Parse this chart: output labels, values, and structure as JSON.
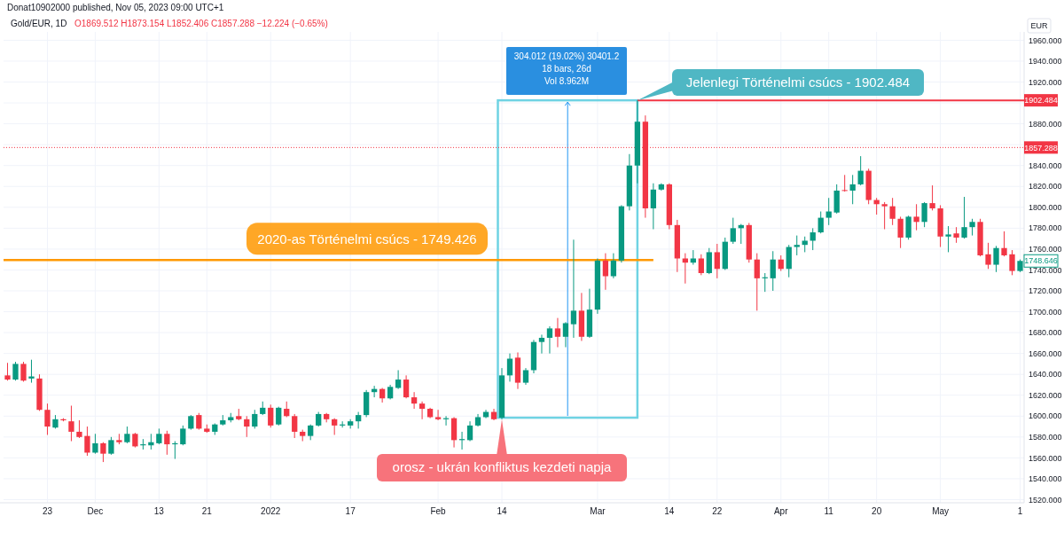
{
  "chart_data": {
    "type": "candlestick",
    "title": "Gold/EUR, 1D",
    "subtitle": "O1869.512 H1873.154 L1852.406 C1857.288 −12.224 (−0.65%)",
    "ylabel": "EUR",
    "categories": [
      null,
      null,
      null,
      null,
      null,
      "23",
      null,
      null,
      null,
      null,
      null,
      "Dec",
      null,
      null,
      null,
      null,
      null,
      null,
      null,
      "13",
      null,
      null,
      null,
      null,
      null,
      "21",
      null,
      null,
      null,
      null,
      null,
      null,
      null,
      "2022",
      null,
      null,
      null,
      null,
      null,
      null,
      null,
      null,
      null,
      "17",
      null,
      null,
      null,
      null,
      null,
      null,
      null,
      null,
      null,
      null,
      "Feb",
      null,
      null,
      null,
      null,
      null,
      null,
      null,
      "14",
      null,
      null,
      null,
      null,
      null,
      null,
      null,
      null,
      null,
      null,
      null,
      "Mar",
      null,
      null,
      null,
      null,
      null,
      null,
      null,
      null,
      "14",
      null,
      null,
      null,
      null,
      null,
      "22",
      null,
      null,
      null,
      null,
      null,
      null,
      null,
      "Apr",
      null,
      null,
      null,
      null,
      null,
      "11",
      null,
      null,
      null,
      null,
      null,
      "20",
      null,
      null,
      null,
      null,
      null,
      null,
      null,
      "May",
      null,
      null,
      null,
      null,
      null,
      null,
      null,
      null,
      null,
      "1"
    ],
    "ohlc": [
      [
        1639,
        1651,
        1634,
        1635
      ],
      [
        1635,
        1652,
        1634,
        1650
      ],
      [
        1650,
        1652,
        1633,
        1634
      ],
      [
        1636,
        1654,
        1632,
        1638
      ],
      [
        1636,
        1640,
        1605,
        1606
      ],
      [
        1606,
        1612,
        1582,
        1590
      ],
      [
        1589,
        1601,
        1588,
        1597
      ],
      [
        1597,
        1598,
        1595,
        1596
      ],
      [
        1595,
        1610,
        1576,
        1585
      ],
      [
        1585,
        1596,
        1579,
        1580
      ],
      [
        1581,
        1590,
        1562,
        1565
      ],
      [
        1565,
        1583,
        1564,
        1574
      ],
      [
        1574,
        1575,
        1556,
        1564
      ],
      [
        1564,
        1580,
        1563,
        1577
      ],
      [
        1577,
        1583,
        1573,
        1575
      ],
      [
        1575,
        1590,
        1574,
        1583
      ],
      [
        1583,
        1584,
        1570,
        1571
      ],
      [
        1572,
        1578,
        1568,
        1573
      ],
      [
        1572,
        1583,
        1568,
        1575
      ],
      [
        1574,
        1588,
        1573,
        1583
      ],
      [
        1583,
        1586,
        1563,
        1573
      ],
      [
        1573,
        1576,
        1559,
        1574
      ],
      [
        1573,
        1591,
        1572,
        1588
      ],
      [
        1588,
        1601,
        1587,
        1600
      ],
      [
        1601,
        1603,
        1587,
        1588
      ],
      [
        1588,
        1592,
        1584,
        1585
      ],
      [
        1585,
        1593,
        1582,
        1592
      ],
      [
        1592,
        1601,
        1591,
        1596
      ],
      [
        1596,
        1603,
        1594,
        1599
      ],
      [
        1600,
        1607,
        1596,
        1597
      ],
      [
        1597,
        1600,
        1580,
        1590
      ],
      [
        1590,
        1606,
        1588,
        1602
      ],
      [
        1602,
        1614,
        1601,
        1608
      ],
      [
        1608,
        1611,
        1589,
        1591
      ],
      [
        1592,
        1609,
        1591,
        1608
      ],
      [
        1607,
        1614,
        1599,
        1600
      ],
      [
        1600,
        1602,
        1579,
        1585
      ],
      [
        1585,
        1587,
        1576,
        1581
      ],
      [
        1581,
        1592,
        1577,
        1591
      ],
      [
        1591,
        1604,
        1590,
        1602
      ],
      [
        1602,
        1603,
        1594,
        1597
      ],
      [
        1597,
        1598,
        1582,
        1591
      ],
      [
        1591,
        1595,
        1589,
        1592
      ],
      [
        1591,
        1597,
        1588,
        1595
      ],
      [
        1595,
        1604,
        1588,
        1601
      ],
      [
        1601,
        1625,
        1599,
        1623
      ],
      [
        1623,
        1629,
        1618,
        1626
      ],
      [
        1626,
        1627,
        1613,
        1617
      ],
      [
        1617,
        1630,
        1616,
        1628
      ],
      [
        1627,
        1644,
        1626,
        1635
      ],
      [
        1635,
        1639,
        1617,
        1618
      ],
      [
        1618,
        1623,
        1607,
        1612
      ],
      [
        1612,
        1614,
        1597,
        1607
      ],
      [
        1607,
        1608,
        1598,
        1599
      ],
      [
        1599,
        1606,
        1596,
        1597
      ],
      [
        1597,
        1600,
        1591,
        1598
      ],
      [
        1598,
        1599,
        1570,
        1577
      ],
      [
        1577,
        1585,
        1568,
        1578
      ],
      [
        1577,
        1595,
        1576,
        1591
      ],
      [
        1591,
        1602,
        1590,
        1599
      ],
      [
        1599,
        1606,
        1598,
        1604
      ],
      [
        1604,
        1607,
        1596,
        1597
      ],
      [
        1598.472,
        1646,
        1597,
        1639
      ],
      [
        1639,
        1660,
        1633,
        1655
      ],
      [
        1656,
        1661,
        1626,
        1632
      ],
      [
        1632,
        1646,
        1630,
        1644
      ],
      [
        1644,
        1673,
        1641,
        1671
      ],
      [
        1671,
        1678,
        1660,
        1675
      ],
      [
        1675,
        1686,
        1660,
        1684
      ],
      [
        1684,
        1694,
        1666,
        1676
      ],
      [
        1676,
        1690,
        1666,
        1689
      ],
      [
        1688,
        1769,
        1675,
        1701
      ],
      [
        1701,
        1718,
        1672,
        1676
      ],
      [
        1676,
        1722,
        1675,
        1702
      ],
      [
        1702,
        1751,
        1698,
        1749
      ],
      [
        1749,
        1756,
        1721,
        1734
      ],
      [
        1734,
        1756,
        1732,
        1749
      ],
      [
        1749,
        1802,
        1747,
        1801
      ],
      [
        1801,
        1851,
        1797,
        1840
      ],
      [
        1840,
        1902.484,
        1823,
        1882
      ],
      [
        1882,
        1888,
        1790,
        1799
      ],
      [
        1799,
        1823,
        1779,
        1817
      ],
      [
        1817,
        1823,
        1816,
        1822
      ],
      [
        1822,
        1823,
        1779,
        1783
      ],
      [
        1783,
        1788,
        1738,
        1751
      ],
      [
        1751,
        1756,
        1727,
        1747
      ],
      [
        1747,
        1759,
        1745,
        1751
      ],
      [
        1751,
        1755,
        1735,
        1737
      ],
      [
        1737,
        1761,
        1736,
        1757
      ],
      [
        1757,
        1765,
        1732,
        1741
      ],
      [
        1741,
        1771,
        1740,
        1767
      ],
      [
        1767,
        1790,
        1765,
        1780
      ],
      [
        1780,
        1784,
        1765,
        1783
      ],
      [
        1783,
        1785,
        1747,
        1750
      ],
      [
        1750,
        1756,
        1701,
        1732
      ],
      [
        1732,
        1737,
        1719,
        1733
      ],
      [
        1732,
        1758,
        1720,
        1750
      ],
      [
        1750,
        1754,
        1739,
        1741
      ],
      [
        1741,
        1764,
        1733,
        1762
      ],
      [
        1762,
        1773,
        1754,
        1764
      ],
      [
        1764,
        1772,
        1757,
        1768
      ],
      [
        1768,
        1780,
        1759,
        1776
      ],
      [
        1776,
        1796,
        1775,
        1790
      ],
      [
        1790,
        1809,
        1783,
        1796
      ],
      [
        1795,
        1822,
        1794,
        1816
      ],
      [
        1816.5,
        1831,
        1815,
        1816
      ],
      [
        1816,
        1831,
        1803,
        1822
      ],
      [
        1822,
        1849,
        1821,
        1835
      ],
      [
        1835,
        1837,
        1803,
        1807
      ],
      [
        1807,
        1809,
        1793,
        1803
      ],
      [
        1803,
        1805,
        1779,
        1801
      ],
      [
        1801,
        1809,
        1783,
        1789
      ],
      [
        1789,
        1791,
        1761,
        1771
      ],
      [
        1771,
        1792,
        1769,
        1791
      ],
      [
        1791,
        1803,
        1778,
        1786
      ],
      [
        1786,
        1805,
        1781,
        1804
      ],
      [
        1804,
        1821,
        1797,
        1799
      ],
      [
        1799,
        1802,
        1762,
        1772
      ],
      [
        1772,
        1782,
        1757,
        1774
      ],
      [
        1775,
        1781,
        1766,
        1771
      ],
      [
        1771,
        1810,
        1770,
        1781
      ],
      [
        1781,
        1789,
        1773,
        1786
      ],
      [
        1786,
        1789,
        1753,
        1754
      ],
      [
        1755,
        1766,
        1741,
        1745
      ],
      [
        1745,
        1763,
        1738,
        1761
      ],
      [
        1761,
        1777,
        1753,
        1754
      ],
      [
        1755,
        1759,
        1735,
        1739
      ],
      [
        1739,
        1750,
        1738,
        1748.646
      ]
    ],
    "ylim": [
      1517,
      1968
    ],
    "yticks": [
      {
        "value": 1520,
        "label": "1520.000"
      },
      {
        "value": 1540,
        "label": "1540.000"
      },
      {
        "value": 1560,
        "label": "1560.000"
      },
      {
        "value": 1580,
        "label": "1580.000"
      },
      {
        "value": 1600,
        "label": "1600.000"
      },
      {
        "value": 1620,
        "label": "1620.000"
      },
      {
        "value": 1640,
        "label": "1640.000"
      },
      {
        "value": 1660,
        "label": "1660.000"
      },
      {
        "value": 1680,
        "label": "1680.000"
      },
      {
        "value": 1700,
        "label": "1700.000"
      },
      {
        "value": 1720,
        "label": "1720.000"
      },
      {
        "value": 1740,
        "label": "1740.000"
      },
      {
        "value": 1760,
        "label": "1760.000"
      },
      {
        "value": 1780,
        "label": "1780.000"
      },
      {
        "value": 1800,
        "label": "1800.000"
      },
      {
        "value": 1820,
        "label": "1820.000"
      },
      {
        "value": 1840,
        "label": "1840.000"
      },
      {
        "value": 1860,
        "label": null
      },
      {
        "value": 1880,
        "label": "1880.000"
      },
      {
        "value": 1900,
        "label": null
      },
      {
        "value": 1920,
        "label": "1920.000"
      },
      {
        "value": 1940,
        "label": "1940.000"
      },
      {
        "value": 1960,
        "label": "1960.000"
      }
    ],
    "grid": true,
    "ref_lines": [
      {
        "axis": "y",
        "value": 1749.426,
        "label": "2020-as Történelmi csúcs - 1749.426",
        "color": "#ff9800",
        "line_style": "solid"
      },
      {
        "axis": "y",
        "value": 1902.484,
        "label": "1902.484",
        "color": "#f23645",
        "line_style": "solid"
      },
      {
        "axis": "y",
        "value": 1857.288,
        "label": "1857.288",
        "color": "#f23645",
        "line_style": "dotted"
      }
    ],
    "annotations": [
      "Donat10902000 published, Nov 05, 2023 09:00 UTC+1",
      "304.012 (19.02%) 30401.2",
      "18 bars, 26d",
      "Vol 8.962M",
      "Jelenlegi Történelmi csúcs - 1902.484",
      "orosz - ukrán konfliktus kezdeti napja",
      {
        "text": "1748.646",
        "y": 1748.646
      }
    ]
  }
}
